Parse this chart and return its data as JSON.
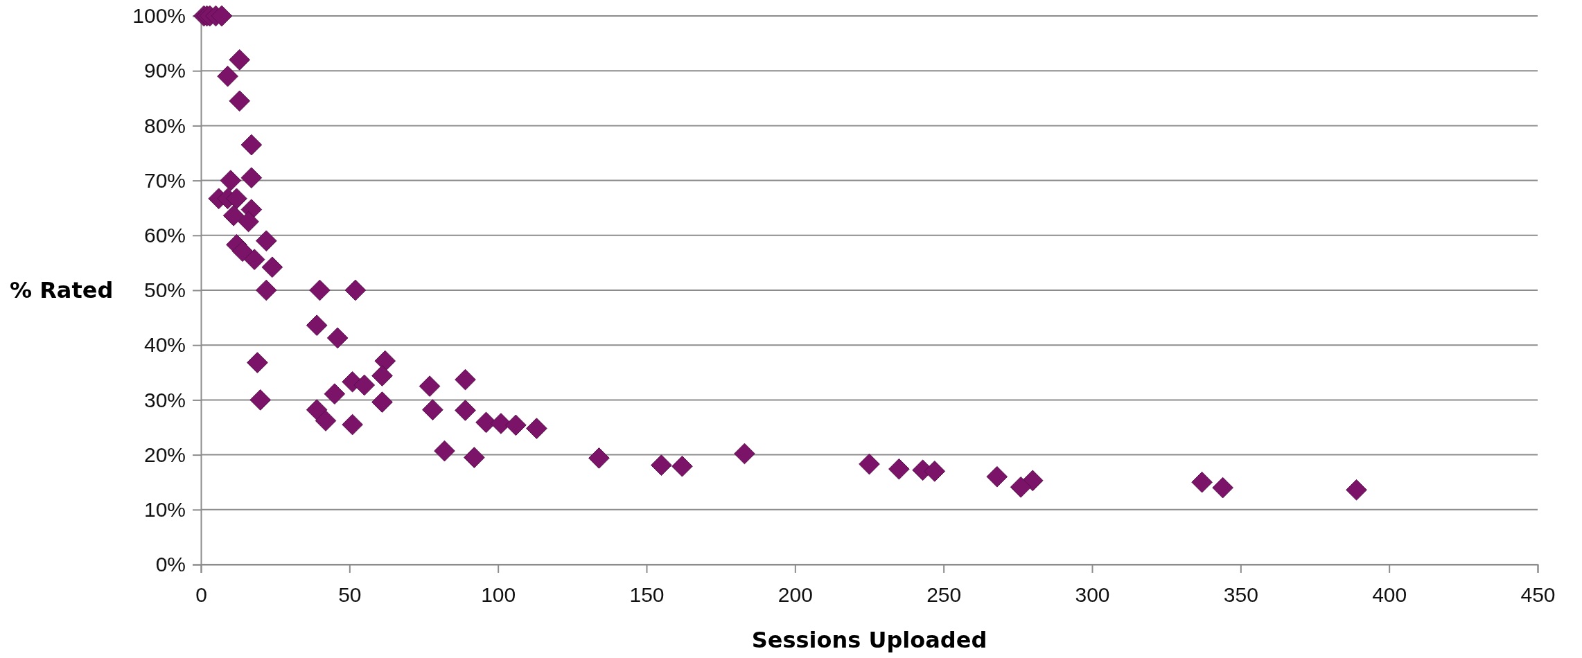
{
  "chart_data": {
    "type": "scatter",
    "xlabel": "Sessions Uploaded",
    "ylabel": "% Rated",
    "marker": "diamond",
    "grid": "y",
    "xlim": [
      0,
      450
    ],
    "xticks": [
      0,
      50,
      100,
      150,
      200,
      250,
      300,
      350,
      400,
      450
    ],
    "ylim": [
      0,
      100
    ],
    "yticks": [
      {
        "value": 0,
        "label": "0%"
      },
      {
        "value": 10,
        "label": "10%"
      },
      {
        "value": 20,
        "label": "20%"
      },
      {
        "value": 30,
        "label": "30%"
      },
      {
        "value": 40,
        "label": "40%"
      },
      {
        "value": 50,
        "label": "50%"
      },
      {
        "value": 60,
        "label": "60%"
      },
      {
        "value": 70,
        "label": "70%"
      },
      {
        "value": 80,
        "label": "80%"
      },
      {
        "value": 90,
        "label": "90%"
      },
      {
        "value": 100,
        "label": "100%"
      }
    ],
    "series": [
      {
        "color": "#7b1468",
        "x": [
          1,
          2,
          3,
          5,
          7,
          13,
          9,
          13,
          17,
          17,
          10,
          6,
          9,
          12,
          17,
          11,
          16,
          22,
          12,
          14,
          18,
          24,
          22,
          40,
          52,
          39,
          46,
          19,
          62,
          61,
          89,
          51,
          55,
          77,
          45,
          20,
          61,
          39,
          78,
          89,
          42,
          96,
          101,
          106,
          51,
          113,
          82,
          92,
          134,
          183,
          155,
          162,
          225,
          235,
          243,
          247,
          268,
          280,
          276,
          337,
          344,
          389
        ],
        "values": [
          100,
          100,
          100,
          100,
          100,
          92,
          89,
          84.5,
          76.5,
          70.5,
          70,
          66.7,
          66.7,
          66.7,
          64.7,
          63.6,
          62.5,
          59,
          58.3,
          57.1,
          55.6,
          54.2,
          50,
          50,
          50,
          43.6,
          41.3,
          36.8,
          37.1,
          34.4,
          33.7,
          33.3,
          32.7,
          32.5,
          31.1,
          30,
          29.6,
          28.2,
          28.2,
          28.1,
          26.2,
          25.9,
          25.7,
          25.4,
          25.5,
          24.8,
          20.7,
          19.5,
          19.4,
          20.2,
          18.1,
          17.9,
          18.3,
          17.4,
          17.2,
          17,
          16,
          15.3,
          14.1,
          15,
          14,
          13.6
        ]
      }
    ]
  }
}
